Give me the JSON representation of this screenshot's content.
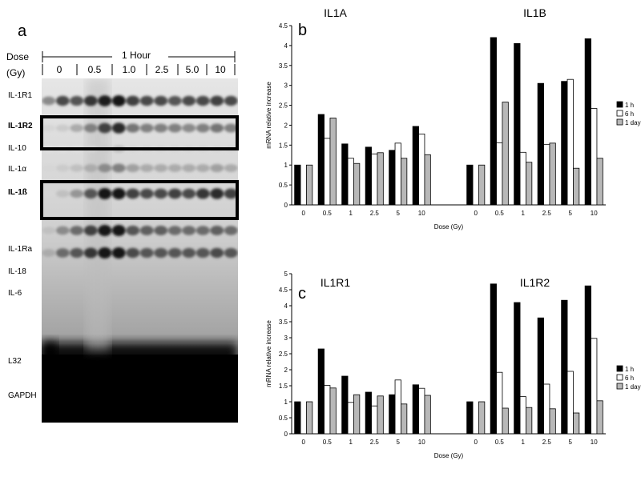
{
  "panel_a": {
    "letter": "a",
    "dose_label": "Dose",
    "gy_label": "(Gy)",
    "time_label": "1 Hour",
    "dose_values": [
      "0",
      "0.5",
      "1.0",
      "2.5",
      "5.0",
      "10"
    ],
    "row_labels": [
      {
        "text": "IL-1R1",
        "bold": false
      },
      {
        "text": "IL-1R2",
        "bold": true
      },
      {
        "text": "IL-10",
        "bold": false
      },
      {
        "text": "IL-1α",
        "bold": false
      },
      {
        "text": "IL-1ß",
        "bold": true
      },
      {
        "text": "IL-1Ra",
        "bold": false
      },
      {
        "text": "IL-18",
        "bold": false
      },
      {
        "text": "IL-6",
        "bold": false
      },
      {
        "text": "L32",
        "bold": false
      },
      {
        "text": "GAPDH",
        "bold": false
      }
    ]
  },
  "legend": [
    "1 h",
    "6 h",
    "1 day"
  ],
  "colors": {
    "1 h": "#000000",
    "6 h": "#ffffff",
    "1 day": "#b8b8b8"
  },
  "chart_data": [
    {
      "panel": "b",
      "type": "bar",
      "group_titles": [
        "IL1A",
        "IL1B"
      ],
      "ylabel": "mRNA relative increase",
      "xlabel": "Dose (Gy)",
      "ylim": [
        0,
        4.5
      ],
      "yticks": [
        "0",
        "0.5",
        "1",
        "1.5",
        "2",
        "2.5",
        "3",
        "3.5",
        "4",
        "4.5"
      ],
      "categories": [
        "0",
        "0.5",
        "1",
        "2.5",
        "5",
        "10"
      ],
      "groups": [
        {
          "name": "IL1A",
          "series": [
            {
              "name": "1 h",
              "values": [
                1.0,
                2.27,
                1.53,
                1.45,
                1.37,
                1.97
              ]
            },
            {
              "name": "6 h",
              "values": [
                null,
                1.67,
                1.17,
                1.28,
                1.55,
                1.78
              ]
            },
            {
              "name": "1 day",
              "values": [
                1.0,
                2.18,
                1.04,
                1.31,
                1.17,
                1.26
              ]
            }
          ]
        },
        {
          "name": "IL1B",
          "series": [
            {
              "name": "1 h",
              "values": [
                1.0,
                4.2,
                4.05,
                3.05,
                3.1,
                4.17
              ]
            },
            {
              "name": "6 h",
              "values": [
                null,
                1.56,
                1.32,
                1.52,
                3.15,
                2.42
              ]
            },
            {
              "name": "1 day",
              "values": [
                1.0,
                2.58,
                1.07,
                1.55,
                0.92,
                1.17
              ]
            }
          ]
        }
      ]
    },
    {
      "panel": "c",
      "type": "bar",
      "group_titles": [
        "IL1R1",
        "IL1R2"
      ],
      "ylabel": "mRNA relative increase",
      "xlabel": "Dose (Gy)",
      "ylim": [
        0,
        5
      ],
      "yticks": [
        "0",
        "0.5",
        "1",
        "1.5",
        "2",
        "2.5",
        "3",
        "3.5",
        "4",
        "4.5",
        "5"
      ],
      "categories": [
        "0",
        "0.5",
        "1",
        "2.5",
        "5",
        "10"
      ],
      "groups": [
        {
          "name": "IL1R1",
          "series": [
            {
              "name": "1 h",
              "values": [
                1.0,
                2.65,
                1.8,
                1.3,
                1.22,
                1.53
              ]
            },
            {
              "name": "6 h",
              "values": [
                null,
                1.51,
                0.98,
                0.87,
                1.68,
                1.42
              ]
            },
            {
              "name": "1 day",
              "values": [
                1.0,
                1.43,
                1.22,
                1.18,
                0.93,
                1.2
              ]
            }
          ]
        },
        {
          "name": "IL1R2",
          "series": [
            {
              "name": "1 h",
              "values": [
                1.0,
                4.68,
                4.1,
                3.62,
                4.17,
                4.62
              ]
            },
            {
              "name": "6 h",
              "values": [
                null,
                1.92,
                1.16,
                1.55,
                1.95,
                2.98
              ]
            },
            {
              "name": "1 day",
              "values": [
                1.0,
                0.8,
                0.82,
                0.78,
                0.65,
                1.03
              ]
            }
          ]
        }
      ]
    }
  ]
}
